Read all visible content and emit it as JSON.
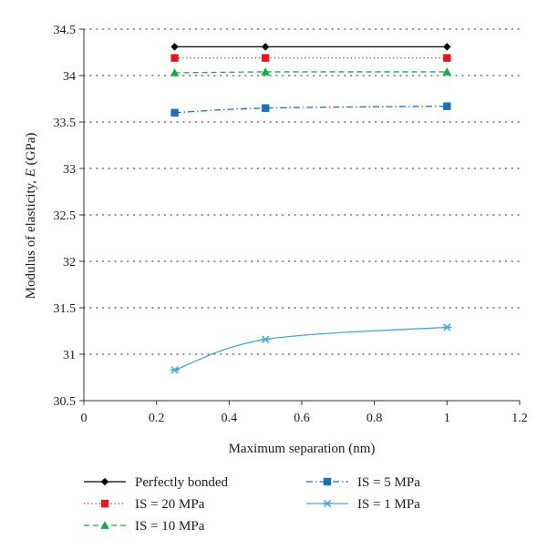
{
  "chart_data": {
    "type": "line",
    "xlabel": "Maximum separation (nm)",
    "ylabel_prefix": "Modulus of elasticity, ",
    "ylabel_var": "E",
    "ylabel_suffix": " (GPa)",
    "xlim": [
      0,
      1.2
    ],
    "ylim": [
      30.5,
      34.5
    ],
    "xticks": [
      0,
      0.2,
      0.4,
      0.6,
      0.8,
      1,
      1.2
    ],
    "yticks": [
      30.5,
      31,
      31.5,
      32,
      32.5,
      33,
      33.5,
      34,
      34.5
    ],
    "xtick_labels": [
      "0",
      "0.2",
      "0.4",
      "0.6",
      "0.8",
      "1",
      "1.2"
    ],
    "ytick_labels": [
      "30.5",
      "31",
      "31.5",
      "32",
      "32.5",
      "33",
      "33.5",
      "34",
      "34.5"
    ],
    "grid": "horizontal-dotted",
    "legend_position": "bottom",
    "x": [
      0.25,
      0.5,
      1.0
    ],
    "series": [
      {
        "name": "Perfectly bonded",
        "values": [
          34.31,
          34.31,
          34.31
        ],
        "color": "#000000",
        "marker": "diamond",
        "dash": "solid",
        "smooth": false
      },
      {
        "name": "IS = 20 MPa",
        "values": [
          34.19,
          34.19,
          34.19
        ],
        "color": "#e8141b",
        "marker": "square",
        "dash": "dotted",
        "smooth": false
      },
      {
        "name": "IS = 10 MPa",
        "values": [
          34.03,
          34.04,
          34.04
        ],
        "color": "#1aa84a",
        "marker": "triangle",
        "dash": "dashed",
        "smooth": false
      },
      {
        "name": "IS = 5 MPa",
        "values": [
          33.6,
          33.65,
          33.67
        ],
        "color": "#1f6fb5",
        "marker": "square",
        "dash": "dashdot",
        "smooth": true
      },
      {
        "name": "IS = 1 MPa",
        "values": [
          30.83,
          31.16,
          31.29
        ],
        "color": "#4ba8cf",
        "marker": "asterisk",
        "dash": "solid",
        "smooth": true
      }
    ]
  }
}
